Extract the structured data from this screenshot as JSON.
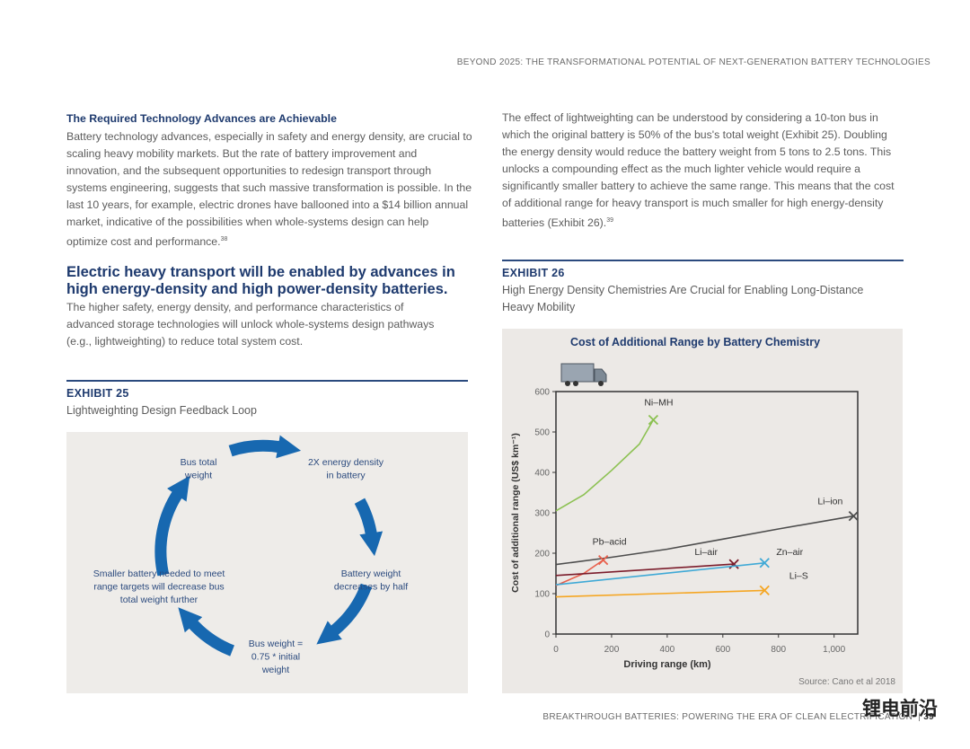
{
  "header": {
    "running_title": "BEYOND 2025: THE TRANSFORMATIONAL POTENTIAL OF NEXT-GENERATION BATTERY TECHNOLOGIES"
  },
  "left": {
    "heading": "The Required Technology Advances are Achievable",
    "paragraph": "Battery technology advances, especially in safety and energy density, are crucial to scaling heavy mobility markets. But the rate of battery improvement and innovation, and the subsequent opportunities to redesign transport through systems engineering, suggests that such massive transformation is possible. In the last 10 years, for example, electric drones have ballooned into a $14 billion annual market, indicative of the possibilities when whole-systems design can help optimize cost and performance.",
    "footnote": "38",
    "section_heading": "Electric heavy transport will be enabled by advances in high energy-density and high power-density batteries.",
    "section_paragraph": "The higher safety, energy density, and performance characteristics of advanced storage technologies will unlock whole-systems design pathways (e.g., lightweighting) to reduce total system cost."
  },
  "exhibit25": {
    "label": "EXHIBIT 25",
    "subtitle": "Lightweighting Design Feedback Loop",
    "nodes": [
      {
        "lines": [
          "Bus total",
          "weight"
        ]
      },
      {
        "lines": [
          "2X energy density",
          "in battery"
        ]
      },
      {
        "lines": [
          "Battery weight",
          "decreases by half"
        ]
      },
      {
        "lines": [
          "Bus weight =",
          "0.75 * initial",
          "weight"
        ]
      },
      {
        "lines": [
          "Smaller battery needed to meet",
          "range targets will decrease bus",
          "total weight further"
        ]
      }
    ]
  },
  "right": {
    "paragraph": "The effect of lightweighting can be understood by considering a 10-ton bus in which the original battery is 50% of the bus's total weight (Exhibit 25). Doubling the energy density would reduce the battery weight from 5 tons to 2.5 tons. This unlocks a compounding effect as the much lighter vehicle would require a significantly smaller battery to achieve the same range. This means that the cost of additional range for heavy transport is much smaller for high energy-density batteries (Exhibit 26).",
    "footnote": "39"
  },
  "exhibit26": {
    "label": "EXHIBIT 26",
    "subtitle": "High Energy Density Chemistries Are Crucial for Enabling Long-Distance Heavy Mobility"
  },
  "chart_data": {
    "type": "line",
    "title": "Cost of Additional Range by Battery Chemistry",
    "x_label": "Driving range (km)",
    "y_label": "Cost of additional range (US$ km⁻¹)",
    "source": "Source: Cano et al 2018",
    "xlim": [
      0,
      1085
    ],
    "ylim": [
      0,
      600
    ],
    "xticks": [
      0,
      200,
      400,
      600,
      800,
      {
        "value": 1000,
        "label": "1,000"
      }
    ],
    "yticks": [
      0,
      100,
      200,
      300,
      400,
      500,
      600
    ],
    "series": [
      {
        "name": "Ni–MH",
        "color": "#8cc152",
        "x": [
          0,
          100,
          200,
          300,
          350
        ],
        "values": [
          305,
          345,
          405,
          470,
          530
        ]
      },
      {
        "name": "Li–ion",
        "color": "#4d4d4d",
        "x": [
          0,
          200,
          400,
          600,
          800,
          1070
        ],
        "values": [
          172,
          190,
          210,
          235,
          260,
          292
        ]
      },
      {
        "name": "Pb–acid",
        "color": "#e8604c",
        "x": [
          0,
          100,
          170
        ],
        "values": [
          120,
          150,
          183
        ]
      },
      {
        "name": "Li–air",
        "color": "#7b1c2b",
        "x": [
          0,
          640
        ],
        "values": [
          145,
          173
        ]
      },
      {
        "name": "Zn–air",
        "color": "#3fa9d6",
        "x": [
          0,
          750
        ],
        "values": [
          122,
          176
        ]
      },
      {
        "name": "Li–S",
        "color": "#f5a623",
        "x": [
          0,
          750
        ],
        "values": [
          92,
          108
        ]
      }
    ]
  },
  "footer": {
    "text": "BREAKTHROUGH BATTERIES: POWERING THE ERA OF CLEAN ELECTRIFICATION",
    "page_number": "39"
  },
  "watermark": "锂电前沿"
}
